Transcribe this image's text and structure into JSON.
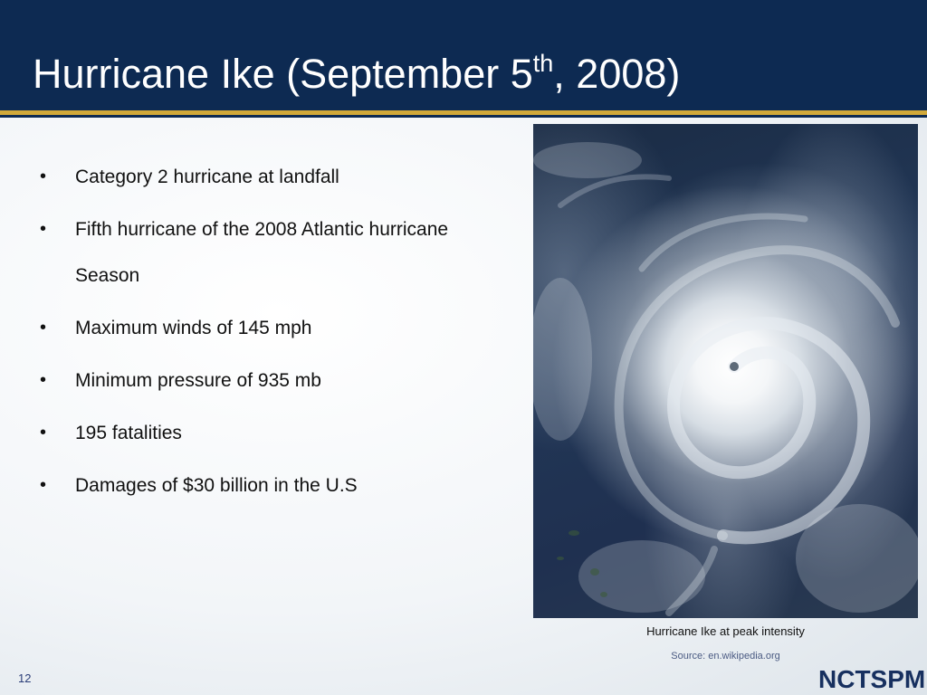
{
  "slide": {
    "title_main": "Hurricane Ike (September 5",
    "title_sup": "th",
    "title_end": ", 2008)",
    "bullets": [
      "Category 2 hurricane at landfall",
      "Fifth hurricane of the 2008 Atlantic hurricane Season",
      "Maximum winds of 145 mph",
      "Minimum pressure of 935 mb",
      "195 fatalities",
      "Damages of $30 billion in the U.S"
    ],
    "bullet_glyph": "•",
    "image_caption": "Hurricane Ike at peak intensity",
    "image_source": "Source: en.wikipedia.org",
    "page_number": "12",
    "logo_text": "NCTSPM"
  },
  "colors": {
    "header": "#0d2a52",
    "gold_rule": "#d1a93a",
    "title_text": "#ffffff",
    "body_text": "#111111"
  }
}
